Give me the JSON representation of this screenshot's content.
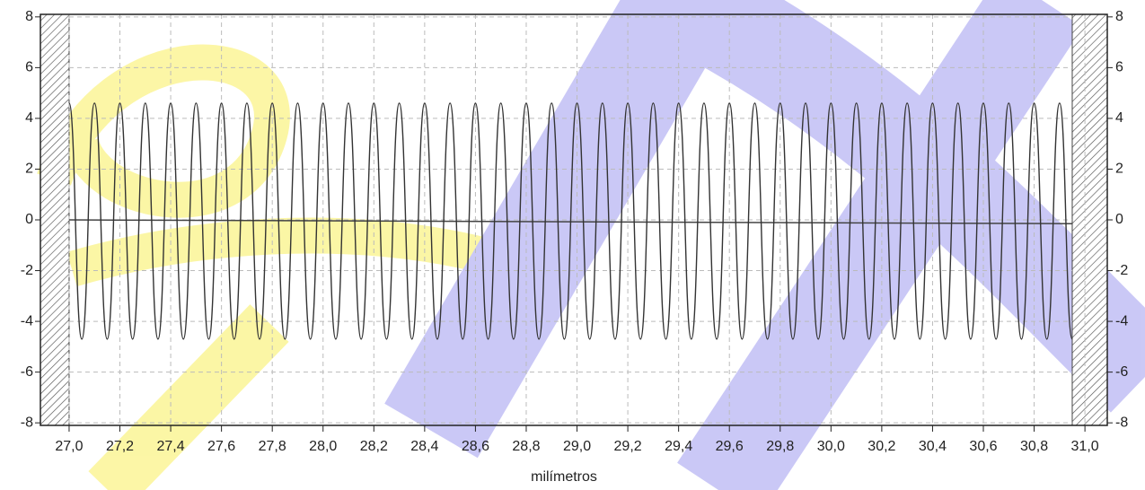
{
  "chart_data": {
    "type": "line",
    "xlabel": "milímetros",
    "x": [
      27,
      27.05,
      27.1,
      27.15,
      27.2,
      27.25,
      27.3,
      27.35,
      27.4,
      27.45,
      27.5,
      27.55,
      27.6,
      27.65,
      27.7,
      27.75,
      27.8,
      27.85,
      27.9,
      27.95,
      28,
      28.05,
      28.1,
      28.15,
      28.2,
      28.25,
      28.3,
      28.35,
      28.4,
      28.45,
      28.5,
      28.55,
      28.6,
      28.65,
      28.7,
      28.75,
      28.8,
      28.85,
      28.9,
      28.95,
      29,
      29.05,
      29.1,
      29.15,
      29.2,
      29.25,
      29.3,
      29.35,
      29.4,
      29.45,
      29.5,
      29.55,
      29.6,
      29.65,
      29.7,
      29.75,
      29.8,
      29.85,
      29.9,
      29.95,
      30,
      30.05,
      30.1,
      30.15,
      30.2,
      30.25,
      30.3,
      30.35,
      30.4,
      30.45,
      30.5,
      30.55,
      30.6,
      30.65,
      30.7,
      30.75,
      30.8,
      30.85,
      30.9,
      30.95
    ],
    "series": [
      {
        "color": "#333333",
        "values": [
          4.6,
          -4.7,
          4.6,
          -4.7,
          4.6,
          -4.7,
          4.6,
          -4.7,
          4.6,
          -4.7,
          4.6,
          -4.7,
          4.6,
          -4.7,
          4.6,
          -4.7,
          4.6,
          -4.7,
          4.6,
          -4.7,
          4.6,
          -4.7,
          4.6,
          -4.7,
          4.6,
          -4.7,
          4.6,
          -4.7,
          4.6,
          -4.7,
          4.6,
          -4.7,
          4.6,
          -4.7,
          4.6,
          -4.7,
          4.6,
          -4.7,
          4.6,
          -4.7,
          4.6,
          -4.7,
          4.6,
          -4.7,
          4.6,
          -4.7,
          4.6,
          -4.7,
          4.6,
          -4.7,
          4.6,
          -4.7,
          4.6,
          -4.7,
          4.6,
          -4.7,
          4.6,
          -4.7,
          4.6,
          -4.7,
          4.6,
          -4.7,
          4.6,
          -4.7,
          4.6,
          -4.7,
          4.6,
          -4.7,
          4.6,
          -4.7,
          4.6,
          -4.7,
          4.6,
          -4.7,
          4.6,
          -4.7,
          4.6,
          -4.7,
          4.6,
          -4.7
        ]
      }
    ],
    "baseline": {
      "x": [
        27,
        30.95
      ],
      "values": [
        0,
        -0.15
      ],
      "color": "#444444"
    },
    "xlim": [
      26.887,
      31.088
    ],
    "ylim": [
      -8.1,
      8.1
    ],
    "yticks": [
      -8,
      -6,
      -4,
      -2,
      0,
      2,
      4,
      6,
      8
    ],
    "xticks": [
      {
        "value": 27.0,
        "label": "27,0"
      },
      {
        "value": 27.2,
        "label": "27,2"
      },
      {
        "value": 27.4,
        "label": "27,4"
      },
      {
        "value": 27.6,
        "label": "27,6"
      },
      {
        "value": 27.8,
        "label": "27,8"
      },
      {
        "value": 28.0,
        "label": "28,0"
      },
      {
        "value": 28.2,
        "label": "28,2"
      },
      {
        "value": 28.4,
        "label": "28,4"
      },
      {
        "value": 28.6,
        "label": "28,6"
      },
      {
        "value": 28.8,
        "label": "28,8"
      },
      {
        "value": 29.0,
        "label": "29,0"
      },
      {
        "value": 29.2,
        "label": "29,2"
      },
      {
        "value": 29.4,
        "label": "29,4"
      },
      {
        "value": 29.6,
        "label": "29,6"
      },
      {
        "value": 29.8,
        "label": "29,8"
      },
      {
        "value": 30.0,
        "label": "30,0"
      },
      {
        "value": 30.2,
        "label": "30,2"
      },
      {
        "value": 30.4,
        "label": "30,4"
      },
      {
        "value": 30.6,
        "label": "30,6"
      },
      {
        "value": 30.8,
        "label": "30,8"
      },
      {
        "value": 31.0,
        "label": "31,0"
      }
    ],
    "grid": true
  }
}
